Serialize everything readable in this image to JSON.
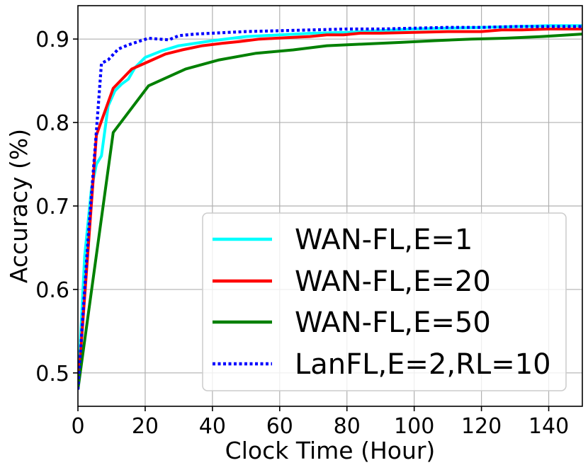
{
  "chart_data": {
    "type": "line",
    "title": "",
    "xlabel": "Clock Time (Hour)",
    "ylabel": "Accuracy (%)",
    "xlim": [
      0,
      150
    ],
    "ylim": [
      0.46,
      0.94
    ],
    "xticks": [
      0,
      20,
      40,
      60,
      80,
      100,
      120,
      140
    ],
    "yticks": [
      0.5,
      0.6,
      0.7,
      0.8,
      0.9
    ],
    "xtick_labels": [
      "0",
      "20",
      "40",
      "60",
      "80",
      "100",
      "120",
      "140"
    ],
    "ytick_labels": [
      "0.5",
      "0.6",
      "0.7",
      "0.8",
      "0.9"
    ],
    "grid": true,
    "legend_position": "bottom-right",
    "series": [
      {
        "name": "WAN-FL,E=1",
        "color": "#00ffff",
        "style": "solid",
        "x": [
          0,
          2,
          4,
          5.5,
          7,
          9,
          11,
          13,
          15,
          17,
          20,
          25,
          30,
          40,
          50,
          60,
          70,
          80,
          90,
          100,
          110,
          120,
          130,
          140,
          150
        ],
        "y": [
          0.48,
          0.64,
          0.72,
          0.75,
          0.76,
          0.82,
          0.838,
          0.846,
          0.852,
          0.866,
          0.878,
          0.886,
          0.892,
          0.898,
          0.903,
          0.905,
          0.907,
          0.908,
          0.91,
          0.912,
          0.913,
          0.914,
          0.915,
          0.916,
          0.916
        ]
      },
      {
        "name": "WAN-FL,E=20",
        "color": "#ff0000",
        "style": "solid",
        "x": [
          0,
          5.5,
          10.5,
          16,
          21,
          26,
          31,
          37,
          43,
          48,
          54,
          59,
          64,
          69,
          74,
          79,
          84,
          90,
          100,
          110,
          120,
          126,
          132,
          140,
          150
        ],
        "y": [
          0.48,
          0.785,
          0.841,
          0.864,
          0.873,
          0.882,
          0.887,
          0.892,
          0.895,
          0.897,
          0.9,
          0.901,
          0.902,
          0.903,
          0.905,
          0.905,
          0.907,
          0.907,
          0.908,
          0.909,
          0.909,
          0.911,
          0.911,
          0.912,
          0.912
        ]
      },
      {
        "name": "WAN-FL,E=50",
        "color": "#008000",
        "style": "solid",
        "x": [
          0,
          10.5,
          21,
          32,
          42,
          53,
          64,
          74,
          85,
          96,
          106,
          117,
          127,
          138,
          150
        ],
        "y": [
          0.48,
          0.788,
          0.844,
          0.864,
          0.875,
          0.883,
          0.887,
          0.892,
          0.894,
          0.896,
          0.898,
          0.9,
          0.901,
          0.903,
          0.906
        ]
      },
      {
        "name": "LanFL,E=2,RL=10",
        "color": "#0000ff",
        "style": "dotted",
        "x": [
          0,
          3,
          5.5,
          7,
          9,
          12,
          15,
          18,
          21,
          24,
          27,
          30,
          35,
          40,
          45,
          50,
          60,
          70,
          80,
          90,
          100,
          110,
          120,
          130,
          140,
          150
        ],
        "y": [
          0.48,
          0.66,
          0.79,
          0.871,
          0.875,
          0.888,
          0.893,
          0.897,
          0.901,
          0.9,
          0.899,
          0.904,
          0.906,
          0.907,
          0.908,
          0.909,
          0.91,
          0.911,
          0.912,
          0.912,
          0.913,
          0.914,
          0.914,
          0.915,
          0.915,
          0.915
        ]
      }
    ]
  }
}
